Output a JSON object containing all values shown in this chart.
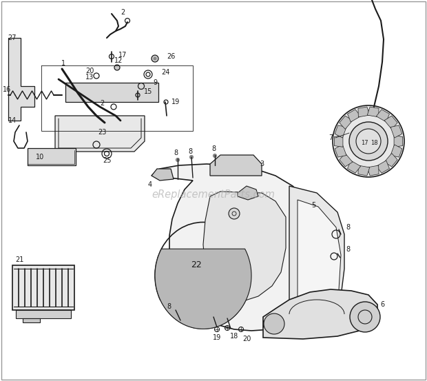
{
  "background_color": "#ffffff",
  "line_color": "#1a1a1a",
  "watermark": "eReplacementParts.com",
  "watermark_color": "#aaaaaa",
  "fig_width": 6.2,
  "fig_height": 5.53,
  "dpi": 100,
  "border_color": "#bbbbbb",
  "gray_fill": "#d8d8d8",
  "light_fill": "#f0f0f0"
}
